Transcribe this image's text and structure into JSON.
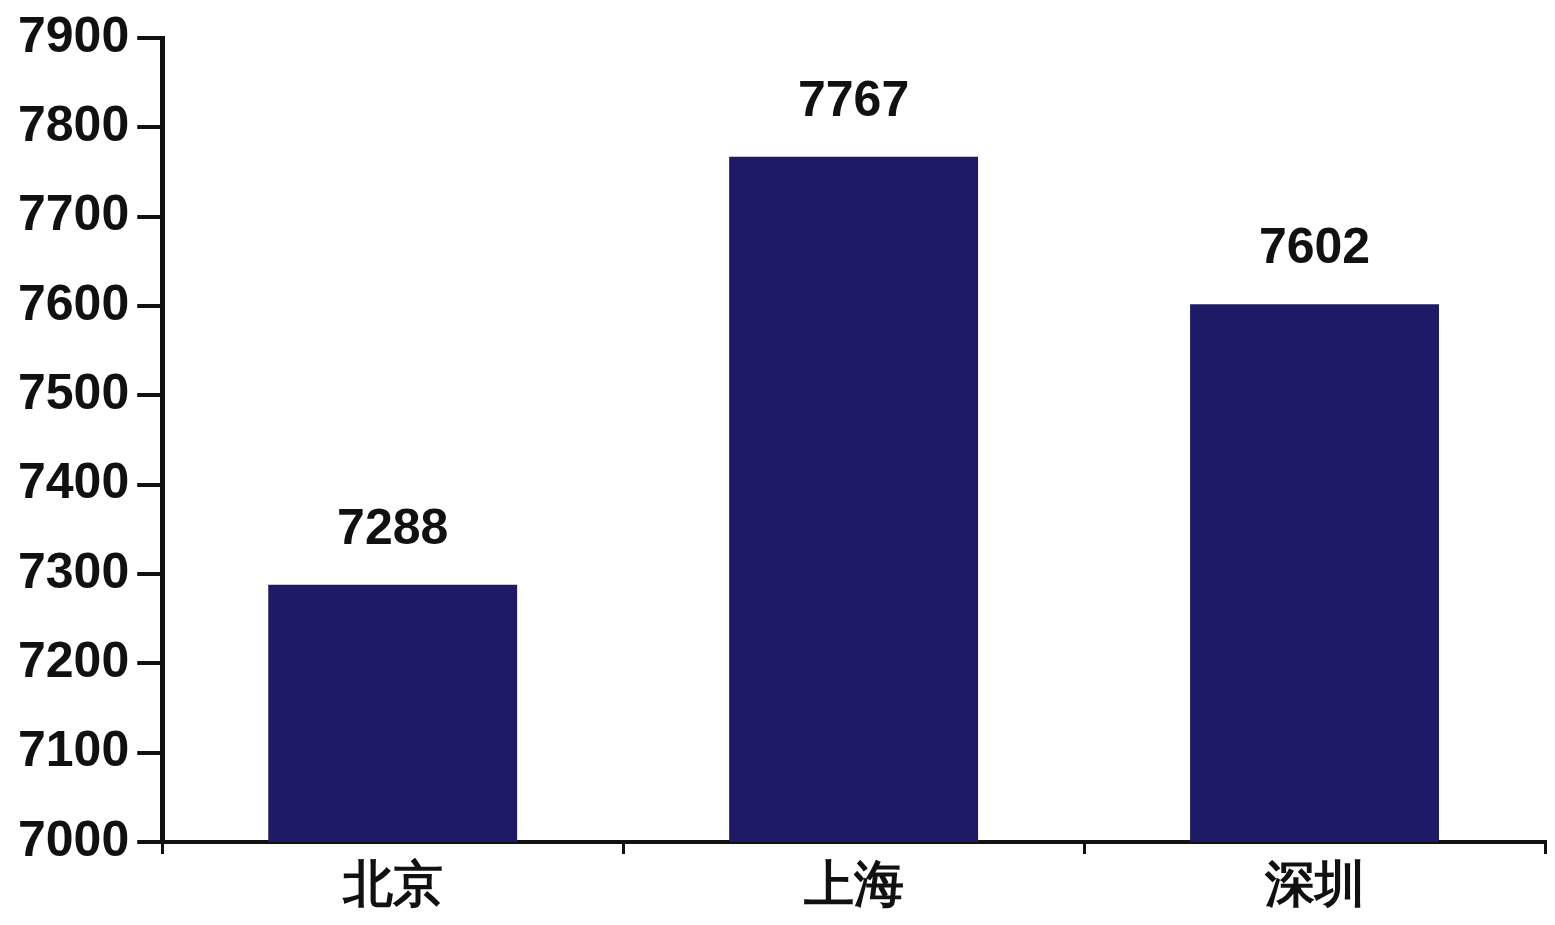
{
  "chart_data": {
    "type": "bar",
    "categories": [
      "北京",
      "上海",
      "深圳"
    ],
    "values": [
      7288,
      7767,
      7602
    ],
    "color": "#1f1a66",
    "ylim": [
      7000,
      7900
    ],
    "yticks": [
      7000,
      7100,
      7200,
      7300,
      7400,
      7500,
      7600,
      7700,
      7800,
      7900
    ],
    "data_labels": true,
    "grid": false,
    "legend": false
  }
}
